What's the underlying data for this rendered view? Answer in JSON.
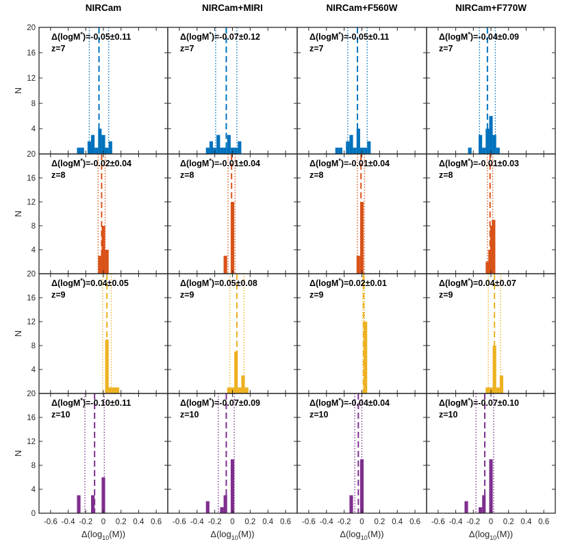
{
  "chart_data": {
    "type": "histogram-grid",
    "columns": [
      "NIRCam",
      "NIRCam+MIRI",
      "NIRCam+F560W",
      "NIRCam+F770W"
    ],
    "rows": [
      {
        "z_label": "z=7",
        "color": "#0072BD"
      },
      {
        "z_label": "z=8",
        "color": "#D95319"
      },
      {
        "z_label": "z=9",
        "color": "#EDB120"
      },
      {
        "z_label": "z=10",
        "color": "#7E2F8E"
      }
    ],
    "xlim": [
      -0.7,
      0.7
    ],
    "xticks": [
      -0.6,
      -0.4,
      -0.2,
      0,
      0.2,
      0.4,
      0.6
    ],
    "xtick_labels": [
      "-0.6",
      "-0.4",
      "-0.2",
      "0",
      "0.2",
      "0.4",
      "0.6"
    ],
    "ylim": [
      0,
      20
    ],
    "yticks": [
      0,
      4,
      8,
      12,
      16,
      20
    ],
    "ytick_labels_bottom": [
      "0",
      "4",
      "8",
      "12",
      "16",
      "20"
    ],
    "ytick_labels_upper": [
      "",
      "4",
      "8",
      "12",
      "16",
      "20"
    ],
    "ylabel": "N",
    "xlabel": "Δ(log10(M))",
    "xlabel_main": "Δ(log",
    "xlabel_sub": "10",
    "xlabel_end": "(M))",
    "annotation_prefix": "Δ(logM",
    "annotation_star": "*",
    "annotation_eq": ")=",
    "annotation_pm": "±",
    "bin_width": 0.04,
    "panels": [
      [
        {
          "mean": -0.05,
          "std": 0.11,
          "mean_label": "-0.05",
          "std_label": "0.11",
          "bins": [
            [
              -0.3,
              1
            ],
            [
              -0.26,
              1
            ],
            [
              -0.18,
              2
            ],
            [
              -0.14,
              3
            ],
            [
              -0.1,
              1
            ],
            [
              -0.06,
              4
            ],
            [
              -0.02,
              3
            ],
            [
              0.02,
              1
            ],
            [
              0.06,
              2
            ]
          ]
        },
        {
          "mean": -0.07,
          "std": 0.12,
          "mean_label": "-0.07",
          "std_label": "0.12",
          "bins": [
            [
              -0.3,
              1
            ],
            [
              -0.26,
              2
            ],
            [
              -0.22,
              1
            ],
            [
              -0.18,
              3
            ],
            [
              -0.14,
              1
            ],
            [
              -0.1,
              1
            ],
            [
              -0.06,
              3
            ],
            [
              -0.02,
              1
            ],
            [
              0.02,
              1
            ],
            [
              0.06,
              2
            ]
          ]
        },
        {
          "mean": -0.05,
          "std": 0.11,
          "mean_label": "-0.05",
          "std_label": "0.11",
          "bins": [
            [
              -0.3,
              1
            ],
            [
              -0.26,
              1
            ],
            [
              -0.18,
              2
            ],
            [
              -0.14,
              3
            ],
            [
              -0.1,
              1
            ],
            [
              -0.06,
              4
            ],
            [
              -0.02,
              1
            ],
            [
              0.02,
              1
            ],
            [
              0.06,
              2
            ]
          ]
        },
        {
          "mean": -0.04,
          "std": 0.09,
          "mean_label": "-0.04",
          "std_label": "0.09",
          "bins": [
            [
              -0.26,
              1
            ],
            [
              -0.18,
              0
            ],
            [
              -0.14,
              3
            ],
            [
              -0.1,
              1
            ],
            [
              -0.06,
              4
            ],
            [
              -0.02,
              6
            ],
            [
              0.02,
              3
            ],
            [
              0.06,
              1
            ]
          ]
        }
      ],
      [
        {
          "mean": -0.02,
          "std": 0.04,
          "mean_label": "-0.02",
          "std_label": "0.04",
          "bins": [
            [
              -0.06,
              3
            ],
            [
              -0.02,
              8
            ],
            [
              0.02,
              4
            ]
          ]
        },
        {
          "mean": -0.01,
          "std": 0.04,
          "mean_label": "-0.01",
          "std_label": "0.04",
          "bins": [
            [
              -0.1,
              3
            ],
            [
              -0.02,
              12
            ]
          ]
        },
        {
          "mean": -0.01,
          "std": 0.04,
          "mean_label": "-0.01",
          "std_label": "0.04",
          "bins": [
            [
              -0.06,
              3
            ],
            [
              -0.02,
              12
            ]
          ]
        },
        {
          "mean": -0.01,
          "std": 0.03,
          "mean_label": "-0.01",
          "std_label": "0.03",
          "bins": [
            [
              -0.06,
              2
            ],
            [
              -0.03,
              4
            ],
            [
              -0.01,
              8
            ],
            [
              0.01,
              9
            ]
          ]
        }
      ],
      [
        {
          "mean": 0.04,
          "std": 0.05,
          "mean_label": "0.04",
          "std_label": "0.05",
          "bins": [
            [
              0.02,
              9
            ],
            [
              0.06,
              1
            ],
            [
              0.1,
              1
            ],
            [
              0.14,
              1
            ]
          ]
        },
        {
          "mean": 0.05,
          "std": 0.08,
          "mean_label": "0.05",
          "std_label": "0.08",
          "bins": [
            [
              -0.06,
              1
            ],
            [
              -0.02,
              1
            ],
            [
              0.02,
              7
            ],
            [
              0.06,
              1
            ],
            [
              0.1,
              3
            ],
            [
              0.14,
              1
            ]
          ]
        },
        {
          "mean": 0.02,
          "std": 0.01,
          "mean_label": "0.02",
          "std_label": "0.01",
          "bins": [
            [
              0.02,
              12
            ]
          ]
        },
        {
          "mean": 0.04,
          "std": 0.07,
          "mean_label": "0.04",
          "std_label": "0.07",
          "bins": [
            [
              -0.06,
              1
            ],
            [
              -0.02,
              1
            ],
            [
              0.02,
              8
            ],
            [
              0.06,
              1
            ],
            [
              0.1,
              3
            ]
          ]
        }
      ],
      [
        {
          "mean": -0.1,
          "std": 0.11,
          "mean_label": "-0.10",
          "std_label": "0.11",
          "bins": [
            [
              -0.3,
              3
            ],
            [
              -0.14,
              3
            ],
            [
              -0.02,
              6
            ]
          ]
        },
        {
          "mean": -0.07,
          "std": 0.09,
          "mean_label": "-0.07",
          "std_label": "0.09",
          "bins": [
            [
              -0.3,
              2
            ],
            [
              -0.14,
              1
            ],
            [
              -0.1,
              3
            ],
            [
              -0.02,
              9
            ]
          ]
        },
        {
          "mean": -0.04,
          "std": 0.04,
          "mean_label": "-0.04",
          "std_label": "0.04",
          "bins": [
            [
              -0.14,
              3
            ],
            [
              -0.02,
              9
            ]
          ]
        },
        {
          "mean": -0.07,
          "std": 0.1,
          "mean_label": "-0.07",
          "std_label": "0.10",
          "bins": [
            [
              -0.3,
              2
            ],
            [
              -0.14,
              1
            ],
            [
              -0.1,
              3
            ],
            [
              -0.02,
              9
            ]
          ]
        }
      ]
    ]
  }
}
